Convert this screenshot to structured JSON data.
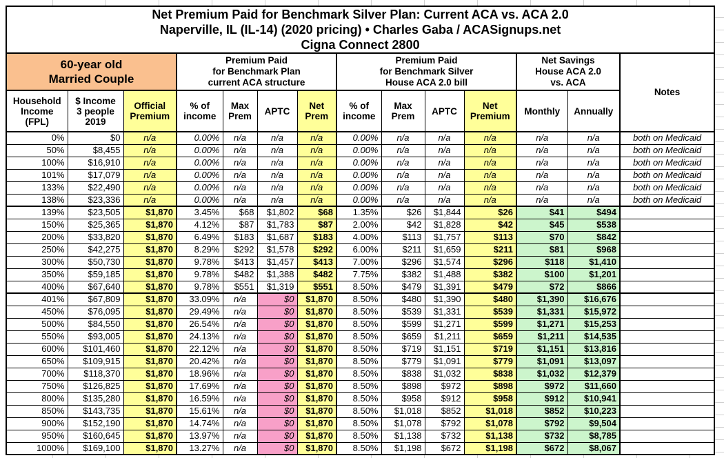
{
  "title": {
    "line1": "Net Premium Paid for Benchmark Silver Plan: Current ACA vs. ACA 2.0",
    "line2": "Naperville, IL (IL-14) (2020 pricing) • Charles Gaba / ACASignups.net",
    "line3": "Cigna Connect 2800"
  },
  "header": {
    "demographic": "60-year old\nMarried Couple",
    "group_current_aca": "Premium Paid\nfor Benchmark Plan\ncurrent ACA structure",
    "group_aca2": "Premium Paid\nfor Benchmark Silver\nHouse ACA 2.0 bill",
    "group_savings": "Net Savings\nHouse ACA 2.0\nvs. ACA",
    "notes": "Notes"
  },
  "columns": {
    "fpl": "Household\nIncome\n(FPL)",
    "income": "$ Income\n3 people\n2019",
    "official": "Official\nPremium",
    "pct_of_income": "% of\nincome",
    "max_prem": "Max\nPrem",
    "aptc": "APTC",
    "net_prem": "Net\nPrem",
    "net_premium": "Net\nPremium",
    "monthly": "Monthly",
    "annually": "Annually"
  },
  "colors": {
    "orange": "#FAC08F",
    "yellow": "#FFFF99",
    "pink": "#F8A0C8",
    "green": "#CCF5CC"
  },
  "rows": [
    {
      "type": "medicaid",
      "fpl": "0%",
      "income": "$0",
      "official": "n/a",
      "aca_pct": "0.00%",
      "aca_max": "n/a",
      "aca_aptc": "n/a",
      "aca_net": "n/a",
      "aca2_pct": "0.00%",
      "aca2_max": "n/a",
      "aca2_aptc": "n/a",
      "aca2_net": "n/a",
      "monthly": "n/a",
      "annually": "n/a",
      "notes": "both on Medicaid"
    },
    {
      "type": "medicaid",
      "fpl": "50%",
      "income": "$8,455",
      "official": "n/a",
      "aca_pct": "0.00%",
      "aca_max": "n/a",
      "aca_aptc": "n/a",
      "aca_net": "n/a",
      "aca2_pct": "0.00%",
      "aca2_max": "n/a",
      "aca2_aptc": "n/a",
      "aca2_net": "n/a",
      "monthly": "n/a",
      "annually": "n/a",
      "notes": "both on Medicaid"
    },
    {
      "type": "medicaid",
      "fpl": "100%",
      "income": "$16,910",
      "official": "n/a",
      "aca_pct": "0.00%",
      "aca_max": "n/a",
      "aca_aptc": "n/a",
      "aca_net": "n/a",
      "aca2_pct": "0.00%",
      "aca2_max": "n/a",
      "aca2_aptc": "n/a",
      "aca2_net": "n/a",
      "monthly": "n/a",
      "annually": "n/a",
      "notes": "both on Medicaid"
    },
    {
      "type": "medicaid",
      "fpl": "101%",
      "income": "$17,079",
      "official": "n/a",
      "aca_pct": "0.00%",
      "aca_max": "n/a",
      "aca_aptc": "n/a",
      "aca_net": "n/a",
      "aca2_pct": "0.00%",
      "aca2_max": "n/a",
      "aca2_aptc": "n/a",
      "aca2_net": "n/a",
      "monthly": "n/a",
      "annually": "n/a",
      "notes": "both on Medicaid"
    },
    {
      "type": "medicaid",
      "fpl": "133%",
      "income": "$22,490",
      "official": "n/a",
      "aca_pct": "0.00%",
      "aca_max": "n/a",
      "aca_aptc": "n/a",
      "aca_net": "n/a",
      "aca2_pct": "0.00%",
      "aca2_max": "n/a",
      "aca2_aptc": "n/a",
      "aca2_net": "n/a",
      "monthly": "n/a",
      "annually": "n/a",
      "notes": "both on Medicaid"
    },
    {
      "type": "medicaid",
      "fpl": "138%",
      "income": "$23,336",
      "official": "n/a",
      "aca_pct": "0.00%",
      "aca_max": "n/a",
      "aca_aptc": "n/a",
      "aca_net": "n/a",
      "aca2_pct": "0.00%",
      "aca2_max": "n/a",
      "aca2_aptc": "n/a",
      "aca2_net": "n/a",
      "monthly": "n/a",
      "annually": "n/a",
      "notes": "both on Medicaid"
    },
    {
      "type": "subsidized",
      "fpl": "139%",
      "income": "$23,505",
      "official": "$1,870",
      "aca_pct": "3.45%",
      "aca_max": "$68",
      "aca_aptc": "$1,802",
      "aca_net": "$68",
      "aca2_pct": "1.35%",
      "aca2_max": "$26",
      "aca2_aptc": "$1,844",
      "aca2_net": "$26",
      "monthly": "$41",
      "annually": "$494",
      "notes": ""
    },
    {
      "type": "subsidized",
      "fpl": "150%",
      "income": "$25,365",
      "official": "$1,870",
      "aca_pct": "4.12%",
      "aca_max": "$87",
      "aca_aptc": "$1,783",
      "aca_net": "$87",
      "aca2_pct": "2.00%",
      "aca2_max": "$42",
      "aca2_aptc": "$1,828",
      "aca2_net": "$42",
      "monthly": "$45",
      "annually": "$538",
      "notes": ""
    },
    {
      "type": "subsidized",
      "fpl": "200%",
      "income": "$33,820",
      "official": "$1,870",
      "aca_pct": "6.49%",
      "aca_max": "$183",
      "aca_aptc": "$1,687",
      "aca_net": "$183",
      "aca2_pct": "4.00%",
      "aca2_max": "$113",
      "aca2_aptc": "$1,757",
      "aca2_net": "$113",
      "monthly": "$70",
      "annually": "$842",
      "notes": ""
    },
    {
      "type": "subsidized",
      "fpl": "250%",
      "income": "$42,275",
      "official": "$1,870",
      "aca_pct": "8.29%",
      "aca_max": "$292",
      "aca_aptc": "$1,578",
      "aca_net": "$292",
      "aca2_pct": "6.00%",
      "aca2_max": "$211",
      "aca2_aptc": "$1,659",
      "aca2_net": "$211",
      "monthly": "$81",
      "annually": "$968",
      "notes": ""
    },
    {
      "type": "subsidized",
      "fpl": "300%",
      "income": "$50,730",
      "official": "$1,870",
      "aca_pct": "9.78%",
      "aca_max": "$413",
      "aca_aptc": "$1,457",
      "aca_net": "$413",
      "aca2_pct": "7.00%",
      "aca2_max": "$296",
      "aca2_aptc": "$1,574",
      "aca2_net": "$296",
      "monthly": "$118",
      "annually": "$1,410",
      "notes": ""
    },
    {
      "type": "subsidized",
      "fpl": "350%",
      "income": "$59,185",
      "official": "$1,870",
      "aca_pct": "9.78%",
      "aca_max": "$482",
      "aca_aptc": "$1,388",
      "aca_net": "$482",
      "aca2_pct": "7.75%",
      "aca2_max": "$382",
      "aca2_aptc": "$1,488",
      "aca2_net": "$382",
      "monthly": "$100",
      "annually": "$1,201",
      "notes": ""
    },
    {
      "type": "subsidized",
      "fpl": "400%",
      "income": "$67,640",
      "official": "$1,870",
      "aca_pct": "9.78%",
      "aca_max": "$551",
      "aca_aptc": "$1,319",
      "aca_net": "$551",
      "aca2_pct": "8.50%",
      "aca2_max": "$479",
      "aca2_aptc": "$1,391",
      "aca2_net": "$479",
      "monthly": "$72",
      "annually": "$866",
      "notes": ""
    },
    {
      "type": "unsubsidized",
      "fpl": "401%",
      "income": "$67,809",
      "official": "$1,870",
      "aca_pct": "33.09%",
      "aca_max": "n/a",
      "aca_aptc": "$0",
      "aca_net": "$1,870",
      "aca2_pct": "8.50%",
      "aca2_max": "$480",
      "aca2_aptc": "$1,390",
      "aca2_net": "$480",
      "monthly": "$1,390",
      "annually": "$16,676",
      "notes": ""
    },
    {
      "type": "unsubsidized",
      "fpl": "450%",
      "income": "$76,095",
      "official": "$1,870",
      "aca_pct": "29.49%",
      "aca_max": "n/a",
      "aca_aptc": "$0",
      "aca_net": "$1,870",
      "aca2_pct": "8.50%",
      "aca2_max": "$539",
      "aca2_aptc": "$1,331",
      "aca2_net": "$539",
      "monthly": "$1,331",
      "annually": "$15,972",
      "notes": ""
    },
    {
      "type": "unsubsidized",
      "fpl": "500%",
      "income": "$84,550",
      "official": "$1,870",
      "aca_pct": "26.54%",
      "aca_max": "n/a",
      "aca_aptc": "$0",
      "aca_net": "$1,870",
      "aca2_pct": "8.50%",
      "aca2_max": "$599",
      "aca2_aptc": "$1,271",
      "aca2_net": "$599",
      "monthly": "$1,271",
      "annually": "$15,253",
      "notes": ""
    },
    {
      "type": "unsubsidized",
      "fpl": "550%",
      "income": "$93,005",
      "official": "$1,870",
      "aca_pct": "24.13%",
      "aca_max": "n/a",
      "aca_aptc": "$0",
      "aca_net": "$1,870",
      "aca2_pct": "8.50%",
      "aca2_max": "$659",
      "aca2_aptc": "$1,211",
      "aca2_net": "$659",
      "monthly": "$1,211",
      "annually": "$14,535",
      "notes": ""
    },
    {
      "type": "unsubsidized",
      "fpl": "600%",
      "income": "$101,460",
      "official": "$1,870",
      "aca_pct": "22.12%",
      "aca_max": "n/a",
      "aca_aptc": "$0",
      "aca_net": "$1,870",
      "aca2_pct": "8.50%",
      "aca2_max": "$719",
      "aca2_aptc": "$1,151",
      "aca2_net": "$719",
      "monthly": "$1,151",
      "annually": "$13,816",
      "notes": ""
    },
    {
      "type": "unsubsidized",
      "fpl": "650%",
      "income": "$109,915",
      "official": "$1,870",
      "aca_pct": "20.42%",
      "aca_max": "n/a",
      "aca_aptc": "$0",
      "aca_net": "$1,870",
      "aca2_pct": "8.50%",
      "aca2_max": "$779",
      "aca2_aptc": "$1,091",
      "aca2_net": "$779",
      "monthly": "$1,091",
      "annually": "$13,097",
      "notes": ""
    },
    {
      "type": "unsubsidized",
      "fpl": "700%",
      "income": "$118,370",
      "official": "$1,870",
      "aca_pct": "18.96%",
      "aca_max": "n/a",
      "aca_aptc": "$0",
      "aca_net": "$1,870",
      "aca2_pct": "8.50%",
      "aca2_max": "$838",
      "aca2_aptc": "$1,032",
      "aca2_net": "$838",
      "monthly": "$1,032",
      "annually": "$12,379",
      "notes": ""
    },
    {
      "type": "unsubsidized",
      "fpl": "750%",
      "income": "$126,825",
      "official": "$1,870",
      "aca_pct": "17.69%",
      "aca_max": "n/a",
      "aca_aptc": "$0",
      "aca_net": "$1,870",
      "aca2_pct": "8.50%",
      "aca2_max": "$898",
      "aca2_aptc": "$972",
      "aca2_net": "$898",
      "monthly": "$972",
      "annually": "$11,660",
      "notes": ""
    },
    {
      "type": "unsubsidized",
      "fpl": "800%",
      "income": "$135,280",
      "official": "$1,870",
      "aca_pct": "16.59%",
      "aca_max": "n/a",
      "aca_aptc": "$0",
      "aca_net": "$1,870",
      "aca2_pct": "8.50%",
      "aca2_max": "$958",
      "aca2_aptc": "$912",
      "aca2_net": "$958",
      "monthly": "$912",
      "annually": "$10,941",
      "notes": ""
    },
    {
      "type": "unsubsidized",
      "fpl": "850%",
      "income": "$143,735",
      "official": "$1,870",
      "aca_pct": "15.61%",
      "aca_max": "n/a",
      "aca_aptc": "$0",
      "aca_net": "$1,870",
      "aca2_pct": "8.50%",
      "aca2_max": "$1,018",
      "aca2_aptc": "$852",
      "aca2_net": "$1,018",
      "monthly": "$852",
      "annually": "$10,223",
      "notes": ""
    },
    {
      "type": "unsubsidized",
      "fpl": "900%",
      "income": "$152,190",
      "official": "$1,870",
      "aca_pct": "14.74%",
      "aca_max": "n/a",
      "aca_aptc": "$0",
      "aca_net": "$1,870",
      "aca2_pct": "8.50%",
      "aca2_max": "$1,078",
      "aca2_aptc": "$792",
      "aca2_net": "$1,078",
      "monthly": "$792",
      "annually": "$9,504",
      "notes": ""
    },
    {
      "type": "unsubsidized",
      "fpl": "950%",
      "income": "$160,645",
      "official": "$1,870",
      "aca_pct": "13.97%",
      "aca_max": "n/a",
      "aca_aptc": "$0",
      "aca_net": "$1,870",
      "aca2_pct": "8.50%",
      "aca2_max": "$1,138",
      "aca2_aptc": "$732",
      "aca2_net": "$1,138",
      "monthly": "$732",
      "annually": "$8,785",
      "notes": ""
    },
    {
      "type": "unsubsidized",
      "fpl": "1000%",
      "income": "$169,100",
      "official": "$1,870",
      "aca_pct": "13.27%",
      "aca_max": "n/a",
      "aca_aptc": "$0",
      "aca_net": "$1,870",
      "aca2_pct": "8.50%",
      "aca2_max": "$1,198",
      "aca2_aptc": "$672",
      "aca2_net": "$1,198",
      "monthly": "$672",
      "annually": "$8,067",
      "notes": ""
    }
  ]
}
